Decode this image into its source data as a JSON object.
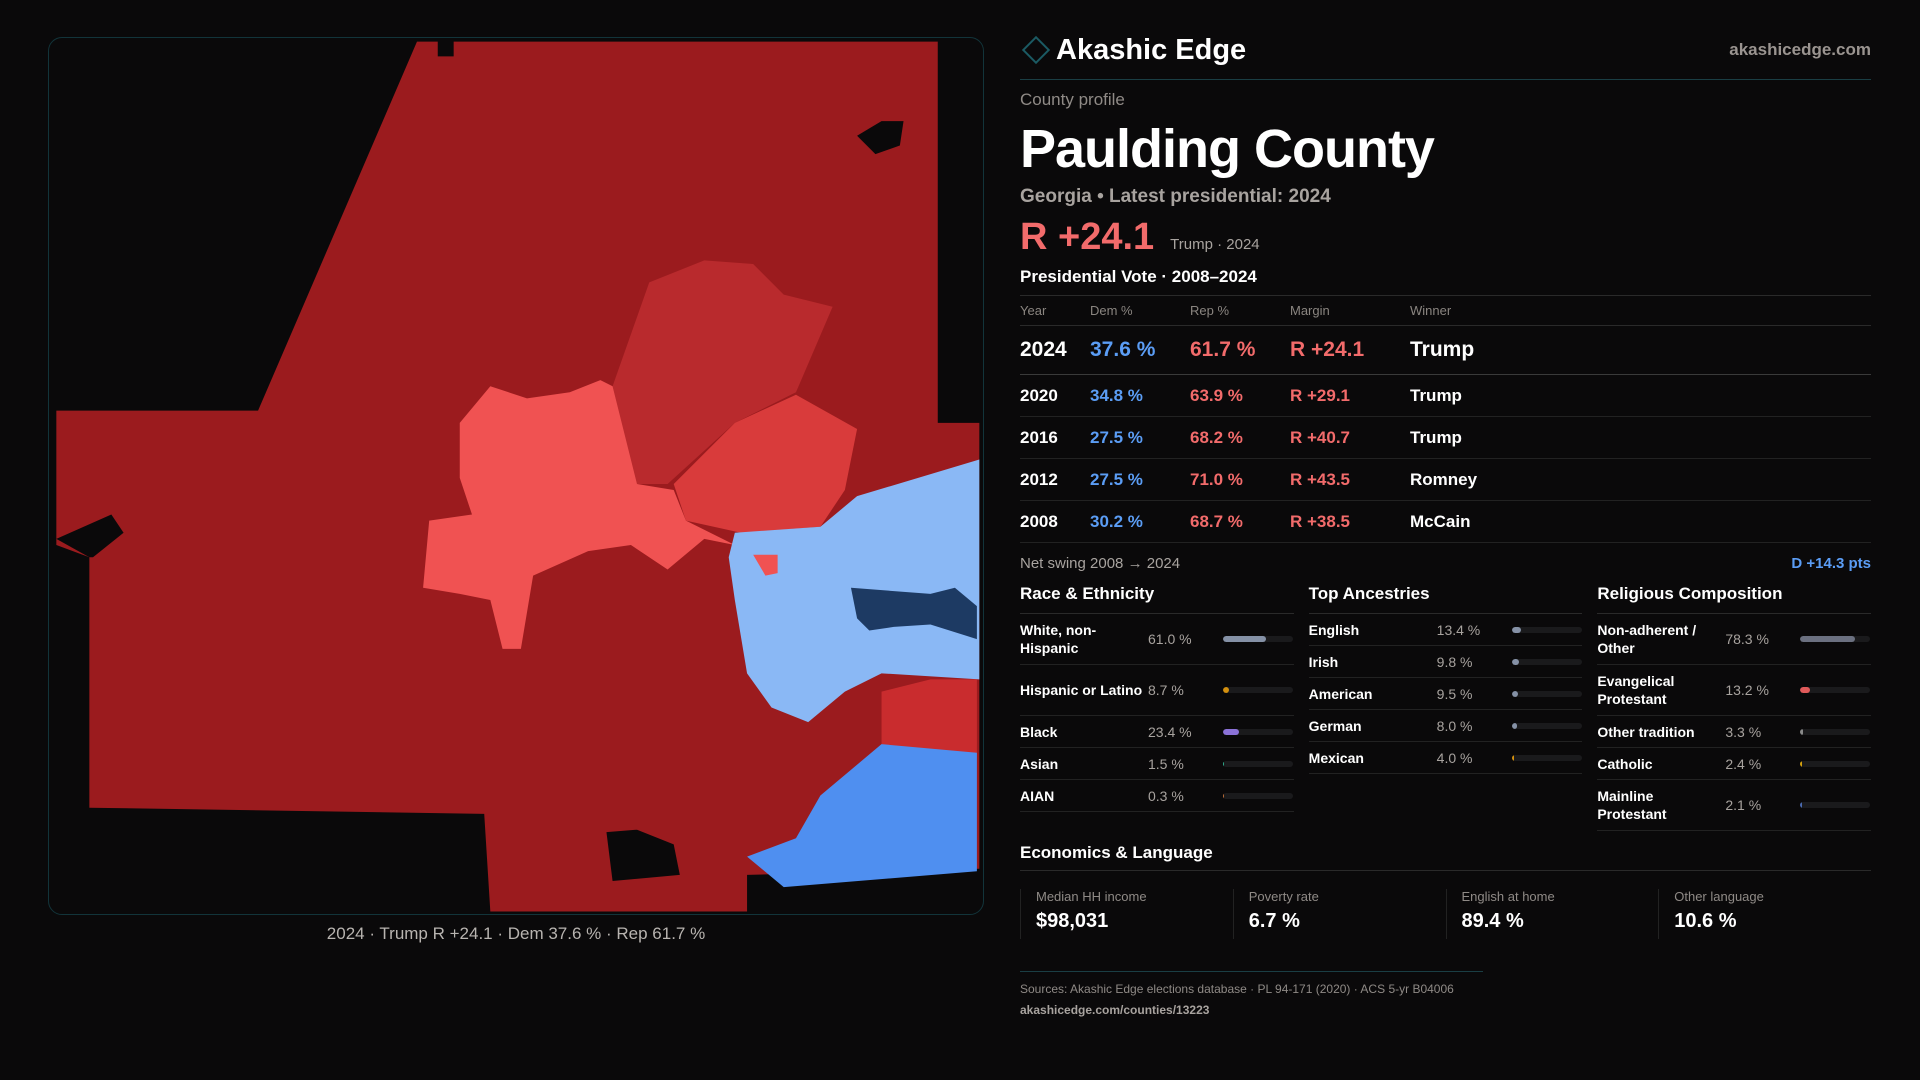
{
  "brand": {
    "name": "Akashic Edge",
    "site": "akashicedge.com"
  },
  "header": {
    "kicker": "County profile",
    "title": "Paulding County",
    "subtitle": "Georgia • Latest presidential: 2024",
    "margin": "R +24.1",
    "margin_sub": "Trump · 2024"
  },
  "map": {
    "caption": "2024 · Trump R +24.1 · Dem 37.6 % · Rep 61.7 %",
    "colors": {
      "safe_r": "#9b1b1e",
      "likely_r": "#b92a2d",
      "lean_r": "#d93b3b",
      "tilt_r": "#f05252",
      "tilt_d": "#8ab8f5",
      "lean_d": "#4f8ff0",
      "safe_d": "#1d3a63"
    }
  },
  "votes": {
    "title": "Presidential Vote · 2008–2024",
    "headers": [
      "Year",
      "Dem %",
      "Rep %",
      "Margin",
      "Winner"
    ],
    "rows": [
      {
        "year": "2024",
        "dem": "37.6 %",
        "rep": "61.7 %",
        "margin": "R +24.1",
        "winner": "Trump"
      },
      {
        "year": "2020",
        "dem": "34.8 %",
        "rep": "63.9 %",
        "margin": "R +29.1",
        "winner": "Trump"
      },
      {
        "year": "2016",
        "dem": "27.5 %",
        "rep": "68.2 %",
        "margin": "R +40.7",
        "winner": "Trump"
      },
      {
        "year": "2012",
        "dem": "27.5 %",
        "rep": "71.0 %",
        "margin": "R +43.5",
        "winner": "Romney"
      },
      {
        "year": "2008",
        "dem": "30.2 %",
        "rep": "68.7 %",
        "margin": "R +38.5",
        "winner": "McCain"
      }
    ]
  },
  "swing": {
    "label": "Net swing 2008 → 2024",
    "value": "D +14.3 pts"
  },
  "race": {
    "title": "Race & Ethnicity",
    "items": [
      {
        "label": "White, non-Hispanic",
        "value": "61.0 %",
        "pct": 61.0,
        "color": "#8591a6"
      },
      {
        "label": "Hispanic or Latino",
        "value": "8.7 %",
        "pct": 8.7,
        "color": "#d4900e"
      },
      {
        "label": "Black",
        "value": "23.4 %",
        "pct": 23.4,
        "color": "#8b72d8"
      },
      {
        "label": "Asian",
        "value": "1.5 %",
        "pct": 1.5,
        "color": "#2fae8e"
      },
      {
        "label": "AIAN",
        "value": "0.3 %",
        "pct": 0.3,
        "color": "#c0703a"
      }
    ]
  },
  "ancestry": {
    "title": "Top Ancestries",
    "items": [
      {
        "label": "English",
        "value": "13.4 %",
        "pct": 13.4,
        "color": "#8591a6"
      },
      {
        "label": "Irish",
        "value": "9.8 %",
        "pct": 9.8,
        "color": "#8591a6"
      },
      {
        "label": "American",
        "value": "9.5 %",
        "pct": 9.5,
        "color": "#8591a6"
      },
      {
        "label": "German",
        "value": "8.0 %",
        "pct": 8.0,
        "color": "#8591a6"
      },
      {
        "label": "Mexican",
        "value": "4.0 %",
        "pct": 4.0,
        "color": "#d4900e"
      }
    ]
  },
  "religion": {
    "title": "Religious Composition",
    "items": [
      {
        "label": "Non-adherent / Other",
        "value": "78.3 %",
        "pct": 78.3,
        "color": "#6b7080"
      },
      {
        "label": "Evangelical Protestant",
        "value": "13.2 %",
        "pct": 13.2,
        "color": "#e05a5a"
      },
      {
        "label": "Other tradition",
        "value": "3.3 %",
        "pct": 3.3,
        "color": "#8a8a8a"
      },
      {
        "label": "Catholic",
        "value": "2.4 %",
        "pct": 2.4,
        "color": "#d4a00e"
      },
      {
        "label": "Mainline Protestant",
        "value": "2.1 %",
        "pct": 2.1,
        "color": "#4a6ab0"
      }
    ]
  },
  "econ": {
    "title": "Economics & Language",
    "stats": [
      {
        "label": "Median HH income",
        "value": "$98,031"
      },
      {
        "label": "Poverty rate",
        "value": "6.7 %"
      },
      {
        "label": "English at home",
        "value": "89.4 %"
      },
      {
        "label": "Other language",
        "value": "10.6 %"
      }
    ]
  },
  "footer": {
    "sources": "Sources: Akashic Edge elections database · PL 94-171 (2020) · ACS 5-yr B04006",
    "url": "akashicedge.com/counties/13223"
  }
}
